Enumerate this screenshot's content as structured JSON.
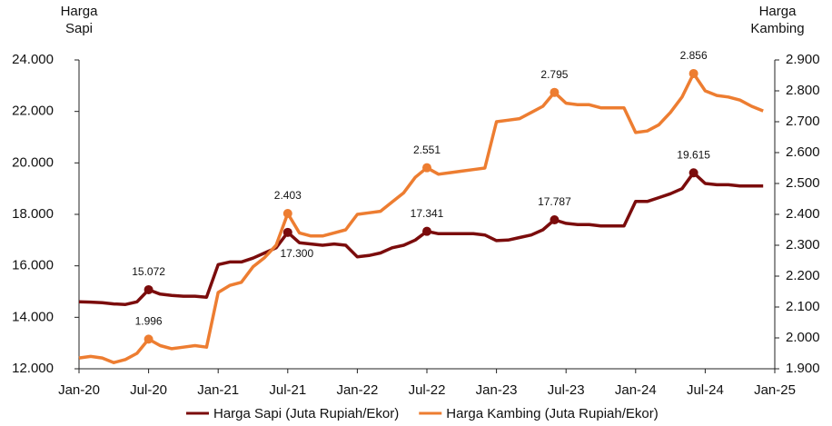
{
  "chart_data": {
    "type": "line",
    "ylabel": [
      "Harga",
      "Sapi"
    ],
    "y2label": [
      "Harga",
      "Kambing"
    ],
    "categories": [
      "Jan-20",
      null,
      null,
      null,
      null,
      null,
      "Jul-20",
      null,
      null,
      null,
      null,
      null,
      "Jan-21",
      null,
      null,
      null,
      null,
      null,
      "Jul-21",
      null,
      null,
      null,
      null,
      null,
      "Jan-22",
      null,
      null,
      null,
      null,
      null,
      "Jul-22",
      null,
      null,
      null,
      null,
      null,
      "Jan-23",
      null,
      null,
      null,
      null,
      null,
      "Jul-23",
      null,
      null,
      null,
      null,
      null,
      "Jan-24",
      null,
      null,
      null,
      null,
      null,
      "Jul-24",
      null,
      null,
      null,
      null,
      null,
      "Jan-25"
    ],
    "series": [
      {
        "name": "Harga Sapi (Juta Rupiah/Ekor)",
        "color": "#7b0c0c",
        "axis": "y",
        "values": [
          14600,
          14590,
          14570,
          14520,
          14500,
          14600,
          15072,
          14900,
          14850,
          14820,
          14820,
          14780,
          16050,
          16150,
          16150,
          16300,
          16500,
          16700,
          17300,
          16900,
          16850,
          16800,
          16850,
          16800,
          16350,
          16400,
          16500,
          16700,
          16800,
          17000,
          17341,
          17250,
          17250,
          17250,
          17250,
          17200,
          16980,
          17000,
          17100,
          17200,
          17400,
          17787,
          17650,
          17600,
          17600,
          17550,
          17550,
          17550,
          18500,
          18500,
          18650,
          18800,
          19000,
          19615,
          19200,
          19150,
          19150,
          19100,
          19100,
          19100,
          null
        ],
        "value_labels": [
          null,
          null,
          null,
          null,
          null,
          null,
          "15.072",
          null,
          null,
          null,
          null,
          null,
          null,
          null,
          null,
          null,
          null,
          null,
          "17.300",
          null,
          null,
          null,
          null,
          null,
          null,
          null,
          null,
          null,
          null,
          null,
          "17.341",
          null,
          null,
          null,
          null,
          null,
          null,
          null,
          null,
          null,
          null,
          "17.787",
          null,
          null,
          null,
          null,
          null,
          null,
          null,
          null,
          null,
          null,
          null,
          "19.615",
          null,
          null,
          null,
          null,
          null,
          null,
          null
        ]
      },
      {
        "name": "Harga Kambing (Juta Rupiah/Ekor)",
        "color": "#ed7d31",
        "axis": "y2",
        "values": [
          1935,
          1940,
          1935,
          1920,
          1930,
          1950,
          1996,
          1975,
          1965,
          1970,
          1975,
          1970,
          2147,
          2170,
          2180,
          2230,
          2260,
          2300,
          2403,
          2340,
          2330,
          2330,
          2340,
          2350,
          2400,
          2405,
          2410,
          2440,
          2470,
          2520,
          2551,
          2530,
          2535,
          2540,
          2545,
          2550,
          2700,
          2705,
          2710,
          2730,
          2750,
          2795,
          2760,
          2755,
          2755,
          2745,
          2745,
          2745,
          2665,
          2670,
          2690,
          2730,
          2780,
          2856,
          2800,
          2785,
          2780,
          2770,
          2750,
          2735,
          null
        ],
        "value_labels": [
          null,
          null,
          null,
          null,
          null,
          null,
          "1.996",
          null,
          null,
          null,
          null,
          null,
          null,
          null,
          null,
          null,
          null,
          null,
          "2.403",
          null,
          null,
          null,
          null,
          null,
          null,
          null,
          null,
          null,
          null,
          null,
          "2.551",
          null,
          null,
          null,
          null,
          null,
          null,
          null,
          null,
          null,
          null,
          "2.795",
          null,
          null,
          null,
          null,
          null,
          null,
          null,
          null,
          null,
          null,
          null,
          "2.856",
          null,
          null,
          null,
          null,
          null,
          null,
          null
        ]
      }
    ],
    "ylim": [
      12000,
      24000
    ],
    "yticks": [
      {
        "value": 12000,
        "label": "12.000"
      },
      {
        "value": 14000,
        "label": "14.000"
      },
      {
        "value": 16000,
        "label": "16.000"
      },
      {
        "value": 18000,
        "label": "18.000"
      },
      {
        "value": 20000,
        "label": "20.000"
      },
      {
        "value": 22000,
        "label": "22.000"
      },
      {
        "value": 24000,
        "label": "24.000"
      }
    ],
    "y2lim": [
      1900,
      2900
    ],
    "y2ticks": [
      {
        "value": 1900,
        "label": "1.900"
      },
      {
        "value": 2000,
        "label": "2.000"
      },
      {
        "value": 2100,
        "label": "2.100"
      },
      {
        "value": 2200,
        "label": "2.200"
      },
      {
        "value": 2300,
        "label": "2.300"
      },
      {
        "value": 2400,
        "label": "2.400"
      },
      {
        "value": 2500,
        "label": "2.500"
      },
      {
        "value": 2600,
        "label": "2.600"
      },
      {
        "value": 2700,
        "label": "2.700"
      },
      {
        "value": 2800,
        "label": "2.800"
      },
      {
        "value": 2900,
        "label": "2.900"
      }
    ],
    "grid": false,
    "legend": "bottom"
  }
}
